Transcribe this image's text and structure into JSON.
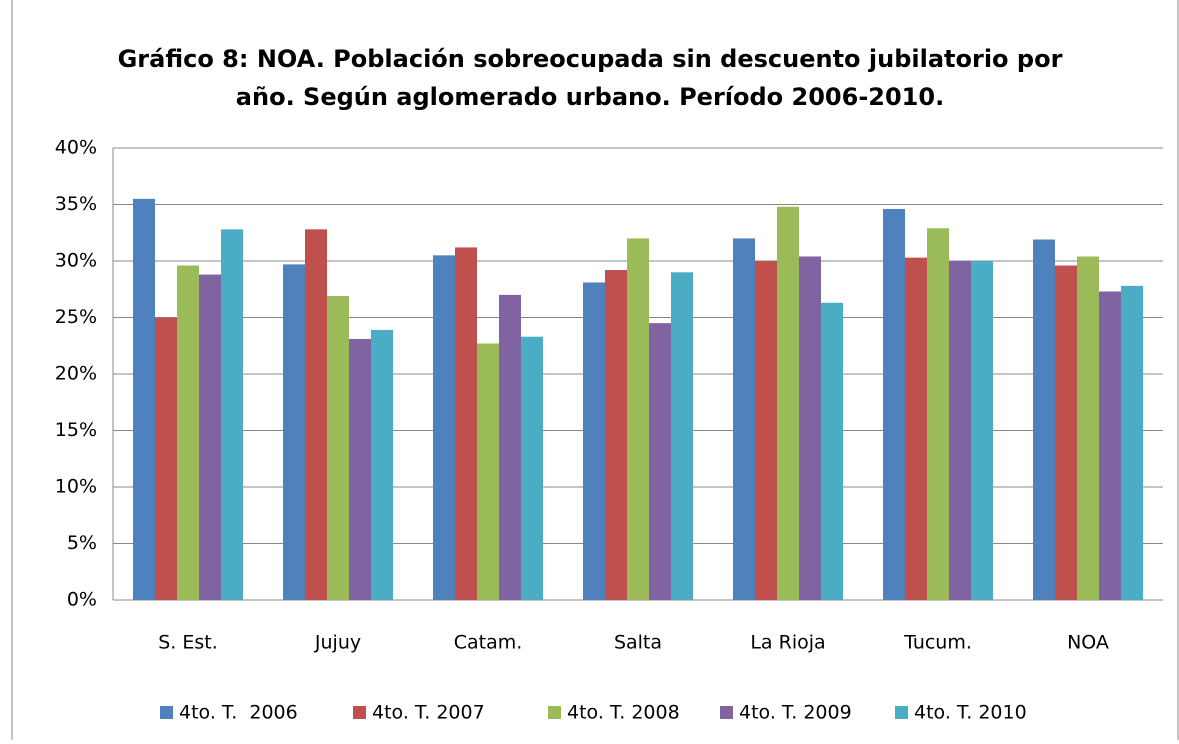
{
  "chart_data": {
    "type": "bar",
    "title": [
      "Gráfico 8: NOA. Población sobreocupada sin descuento jubilatorio por",
      "año. Según aglomerado urbano. Período 2006-2010."
    ],
    "categories": [
      "S. Est.",
      "Jujuy",
      "Catam.",
      "Salta",
      "La Rioja",
      "Tucum.",
      "NOA"
    ],
    "series": [
      {
        "name": "4to. T.  2006",
        "color": "#4f81bd",
        "values": [
          35.5,
          29.7,
          30.5,
          28.1,
          32.0,
          34.6,
          31.9
        ]
      },
      {
        "name": "4to. T. 2007",
        "color": "#c0504d",
        "values": [
          25.0,
          32.8,
          31.2,
          29.2,
          30.0,
          30.3,
          29.6
        ]
      },
      {
        "name": "4to. T. 2008",
        "color": "#9bbb59",
        "values": [
          29.6,
          26.9,
          22.7,
          32.0,
          34.8,
          32.9,
          30.4
        ]
      },
      {
        "name": "4to. T. 2009",
        "color": "#8064a2",
        "values": [
          28.8,
          23.1,
          27.0,
          24.5,
          30.4,
          30.0,
          27.3
        ]
      },
      {
        "name": "4to. T. 2010",
        "color": "#4bacc6",
        "values": [
          32.8,
          23.9,
          23.3,
          29.0,
          26.3,
          30.0,
          27.8
        ]
      }
    ],
    "ylim": [
      0,
      40
    ],
    "yticks": [
      {
        "value": 0,
        "label": "0%"
      },
      {
        "value": 5,
        "label": "5%"
      },
      {
        "value": 10,
        "label": "10%"
      },
      {
        "value": 15,
        "label": "15%"
      },
      {
        "value": 20,
        "label": "20%"
      },
      {
        "value": 25,
        "label": "25%"
      },
      {
        "value": 30,
        "label": "30%"
      },
      {
        "value": 35,
        "label": "35%"
      },
      {
        "value": 40,
        "label": "40%"
      }
    ],
    "grid": true,
    "legend": "bottom"
  }
}
